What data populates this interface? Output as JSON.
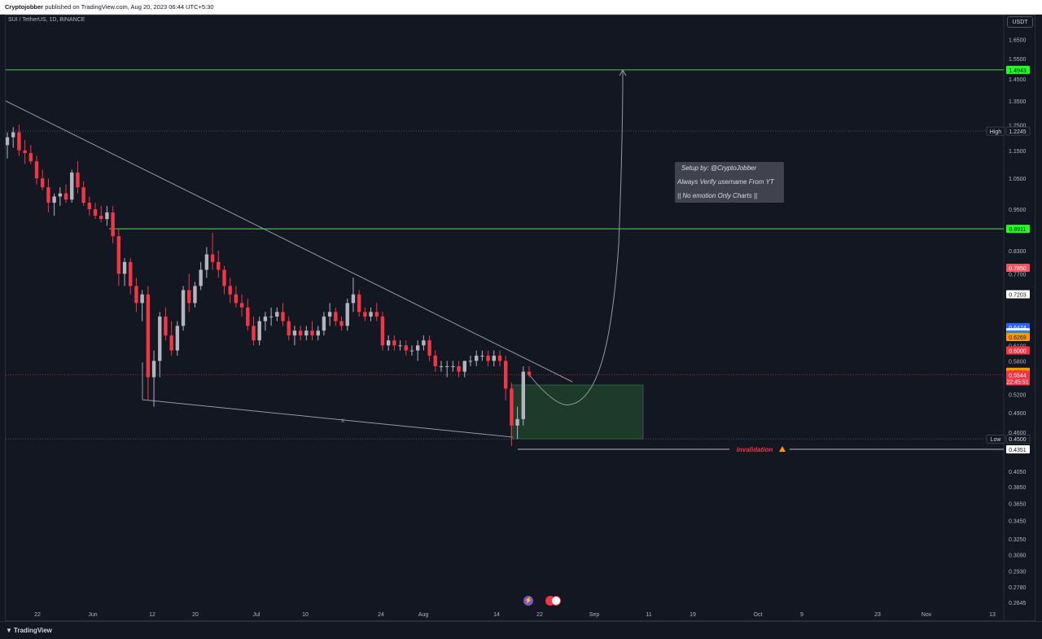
{
  "header": {
    "publisher": "Cryptojobber",
    "published_text": "published on TradingView.com, Aug 20, 2023 06:44 UTC+5:30"
  },
  "symbol": {
    "title": "SUI / TetherUS, 1D, BINANCE"
  },
  "currency_button": "USDT",
  "footer": {
    "logo_text": "TradingView"
  },
  "colors": {
    "background": "#131722",
    "bull": "#b2b5be",
    "bear": "#f23645",
    "target_line": "#4caf50",
    "badge_green": "#1eff1e",
    "zone": "#1e3a2b",
    "trend": "#9598a1",
    "invalidation": "#f23645"
  },
  "annotations": {
    "setup_lines": [
      "Setup by: @CryptoJobber",
      "Always Verify username From YT",
      "|| No emotion Only Charts ||"
    ],
    "invalidation_label": "invalidation",
    "warning_icon": "warning-icon",
    "x_mark": "x"
  },
  "chart_data": {
    "type": "candlestick",
    "scale": "log",
    "y_range": [
      0.255,
      1.72
    ],
    "y_ticks": [
      "1.6500",
      "1.5500",
      "1.4500",
      "1.3500",
      "1.2500",
      "1.1500",
      "1.0500",
      "0.9500",
      "0.8300",
      "0.7700",
      "0.6100",
      "0.5800",
      "0.5200",
      "0.4900",
      "0.4600",
      "0.4050",
      "0.3850",
      "0.3650",
      "0.3450",
      "0.3250",
      "0.3090",
      "0.2930",
      "0.2780",
      "0.2645"
    ],
    "x_labels": [
      "22",
      "Jun",
      "12",
      "20",
      "Jul",
      "10",
      "24",
      "Aug",
      "14",
      "22",
      "Sep",
      "11",
      "19",
      "Oct",
      "9",
      "23",
      "Nov",
      "13"
    ],
    "price_badges": [
      {
        "label": "",
        "value": "1.4943",
        "bg": "#1eff1e",
        "fg": "#131722"
      },
      {
        "label": "High",
        "value": "1.2245",
        "bg": "#131722",
        "fg": "#d1d4dc"
      },
      {
        "label": "",
        "value": "0.8911",
        "bg": "#1eff1e",
        "fg": "#131722"
      },
      {
        "label": "",
        "value": "0.7850",
        "bg": "#f7525f",
        "fg": "#ffffff"
      },
      {
        "label": "",
        "value": "0.7203",
        "bg": "#ffffff",
        "fg": "#131722"
      },
      {
        "label": "",
        "value": "0.6474",
        "bg": "#2962ff",
        "fg": "#ffffff"
      },
      {
        "label": "",
        "value": "0.6366",
        "bg": "#ffffff",
        "fg": "#131722"
      },
      {
        "label": "",
        "value": "0.6320",
        "bg": "#1e88e5",
        "fg": "#ffffff"
      },
      {
        "label": "",
        "value": "0.6269",
        "bg": "#ff9800",
        "fg": "#131722"
      },
      {
        "label": "",
        "value": "0.6000",
        "bg": "#f23645",
        "fg": "#ffffff"
      },
      {
        "label": "",
        "value": "0.5598",
        "bg": "#ff9800",
        "fg": "#131722"
      },
      {
        "label": "",
        "value": "0.5544",
        "bg": "#f23645",
        "fg": "#ffffff",
        "sub": "22:45:51"
      },
      {
        "label": "Low",
        "value": "0.4500",
        "bg": "#131722",
        "fg": "#d1d4dc"
      },
      {
        "label": "",
        "value": "0.4351",
        "bg": "#ffffff",
        "fg": "#131722"
      }
    ],
    "levels": {
      "target_high": 1.4943,
      "target_mid": 0.8911,
      "high": 1.2245,
      "low": 0.45,
      "invalidation": 0.4351,
      "last": 0.5544
    },
    "candles": [
      [
        1.17,
        1.22,
        1.12,
        1.2
      ],
      [
        1.2,
        1.24,
        1.16,
        1.22
      ],
      [
        1.22,
        1.25,
        1.13,
        1.15
      ],
      [
        1.15,
        1.19,
        1.1,
        1.14
      ],
      [
        1.14,
        1.17,
        1.1,
        1.11
      ],
      [
        1.11,
        1.13,
        1.03,
        1.05
      ],
      [
        1.05,
        1.08,
        1.01,
        1.02
      ],
      [
        1.02,
        1.05,
        0.94,
        0.97
      ],
      [
        0.97,
        1.0,
        0.93,
        0.99
      ],
      [
        0.99,
        1.02,
        0.96,
        1.0
      ],
      [
        1.0,
        1.03,
        0.97,
        0.98
      ],
      [
        0.98,
        1.08,
        0.97,
        1.07
      ],
      [
        1.07,
        1.11,
        1.0,
        1.02
      ],
      [
        1.02,
        1.04,
        0.96,
        0.97
      ],
      [
        0.97,
        0.99,
        0.93,
        0.95
      ],
      [
        0.95,
        0.97,
        0.92,
        0.93
      ],
      [
        0.93,
        0.96,
        0.91,
        0.92
      ],
      [
        0.92,
        0.96,
        0.9,
        0.94
      ],
      [
        0.94,
        0.96,
        0.85,
        0.87
      ],
      [
        0.87,
        0.89,
        0.74,
        0.77
      ],
      [
        0.77,
        0.81,
        0.74,
        0.8
      ],
      [
        0.8,
        0.81,
        0.72,
        0.74
      ],
      [
        0.74,
        0.76,
        0.68,
        0.7
      ],
      [
        0.7,
        0.73,
        0.66,
        0.72
      ],
      [
        0.72,
        0.74,
        0.51,
        0.55
      ],
      [
        0.55,
        0.6,
        0.5,
        0.58
      ],
      [
        0.58,
        0.68,
        0.55,
        0.67
      ],
      [
        0.67,
        0.69,
        0.62,
        0.63
      ],
      [
        0.63,
        0.66,
        0.59,
        0.6
      ],
      [
        0.6,
        0.66,
        0.59,
        0.65
      ],
      [
        0.65,
        0.74,
        0.64,
        0.73
      ],
      [
        0.73,
        0.77,
        0.68,
        0.7
      ],
      [
        0.7,
        0.75,
        0.69,
        0.74
      ],
      [
        0.74,
        0.8,
        0.73,
        0.78
      ],
      [
        0.78,
        0.84,
        0.76,
        0.82
      ],
      [
        0.82,
        0.88,
        0.78,
        0.8
      ],
      [
        0.8,
        0.83,
        0.76,
        0.78
      ],
      [
        0.78,
        0.79,
        0.72,
        0.74
      ],
      [
        0.74,
        0.76,
        0.7,
        0.72
      ],
      [
        0.72,
        0.74,
        0.69,
        0.7
      ],
      [
        0.7,
        0.72,
        0.67,
        0.69
      ],
      [
        0.69,
        0.71,
        0.64,
        0.65
      ],
      [
        0.65,
        0.67,
        0.61,
        0.62
      ],
      [
        0.62,
        0.67,
        0.61,
        0.66
      ],
      [
        0.66,
        0.68,
        0.64,
        0.67
      ],
      [
        0.67,
        0.69,
        0.65,
        0.67
      ],
      [
        0.67,
        0.69,
        0.66,
        0.68
      ],
      [
        0.68,
        0.7,
        0.65,
        0.66
      ],
      [
        0.66,
        0.67,
        0.62,
        0.63
      ],
      [
        0.63,
        0.65,
        0.61,
        0.64
      ],
      [
        0.64,
        0.65,
        0.62,
        0.63
      ],
      [
        0.63,
        0.65,
        0.62,
        0.64
      ],
      [
        0.64,
        0.66,
        0.62,
        0.63
      ],
      [
        0.63,
        0.65,
        0.62,
        0.64
      ],
      [
        0.64,
        0.68,
        0.63,
        0.67
      ],
      [
        0.67,
        0.7,
        0.65,
        0.68
      ],
      [
        0.68,
        0.69,
        0.65,
        0.66
      ],
      [
        0.66,
        0.67,
        0.64,
        0.65
      ],
      [
        0.65,
        0.71,
        0.64,
        0.7
      ],
      [
        0.7,
        0.76,
        0.68,
        0.72
      ],
      [
        0.72,
        0.73,
        0.67,
        0.68
      ],
      [
        0.68,
        0.69,
        0.66,
        0.67
      ],
      [
        0.67,
        0.69,
        0.66,
        0.68
      ],
      [
        0.68,
        0.7,
        0.66,
        0.67
      ],
      [
        0.67,
        0.68,
        0.6,
        0.61
      ],
      [
        0.61,
        0.63,
        0.6,
        0.62
      ],
      [
        0.62,
        0.63,
        0.6,
        0.61
      ],
      [
        0.61,
        0.62,
        0.6,
        0.61
      ],
      [
        0.61,
        0.62,
        0.59,
        0.6
      ],
      [
        0.6,
        0.61,
        0.59,
        0.6
      ],
      [
        0.6,
        0.62,
        0.58,
        0.61
      ],
      [
        0.61,
        0.63,
        0.6,
        0.62
      ],
      [
        0.62,
        0.63,
        0.58,
        0.59
      ],
      [
        0.59,
        0.6,
        0.56,
        0.57
      ],
      [
        0.57,
        0.58,
        0.56,
        0.57
      ],
      [
        0.57,
        0.58,
        0.55,
        0.57
      ],
      [
        0.57,
        0.58,
        0.56,
        0.57
      ],
      [
        0.57,
        0.58,
        0.55,
        0.56
      ],
      [
        0.56,
        0.58,
        0.55,
        0.58
      ],
      [
        0.58,
        0.59,
        0.57,
        0.58
      ],
      [
        0.58,
        0.6,
        0.57,
        0.59
      ],
      [
        0.59,
        0.6,
        0.58,
        0.59
      ],
      [
        0.59,
        0.6,
        0.57,
        0.58
      ],
      [
        0.58,
        0.6,
        0.57,
        0.59
      ],
      [
        0.59,
        0.6,
        0.57,
        0.58
      ],
      [
        0.58,
        0.59,
        0.51,
        0.53
      ],
      [
        0.53,
        0.54,
        0.44,
        0.47
      ],
      [
        0.47,
        0.5,
        0.45,
        0.48
      ],
      [
        0.48,
        0.57,
        0.47,
        0.56
      ],
      [
        0.56,
        0.57,
        0.55,
        0.554
      ]
    ]
  }
}
